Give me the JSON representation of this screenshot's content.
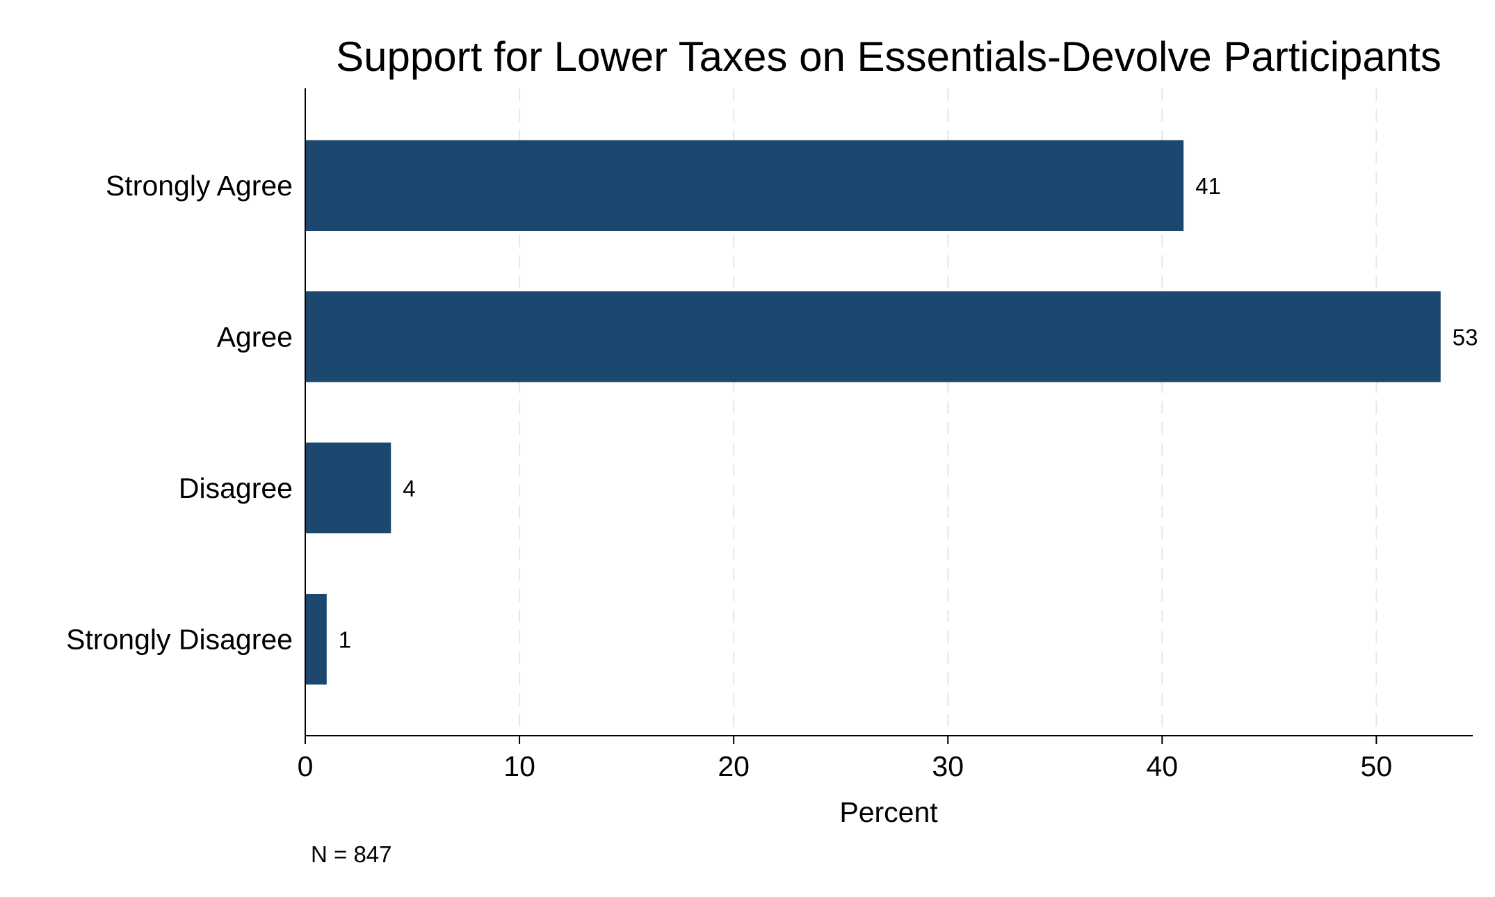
{
  "chart_data": {
    "type": "bar",
    "orientation": "horizontal",
    "title": "Support for Lower Taxes on Essentials-Devolve Participants",
    "xlabel": "Percent",
    "ylabel": "",
    "categories": [
      "Strongly Agree",
      "Agree",
      "Disagree",
      "Strongly Disagree"
    ],
    "values": [
      41,
      53,
      4,
      1
    ],
    "value_labels": [
      "41",
      "53",
      "4",
      "1"
    ],
    "xlim": [
      0,
      54.5
    ],
    "xticks": [
      0,
      10,
      20,
      30,
      40,
      50
    ],
    "xtick_labels": [
      "0",
      "10",
      "20",
      "30",
      "40",
      "50"
    ],
    "grid": "vertical dashed",
    "legend": "none",
    "note": "N = 847",
    "bar_color": "#1c4870"
  }
}
